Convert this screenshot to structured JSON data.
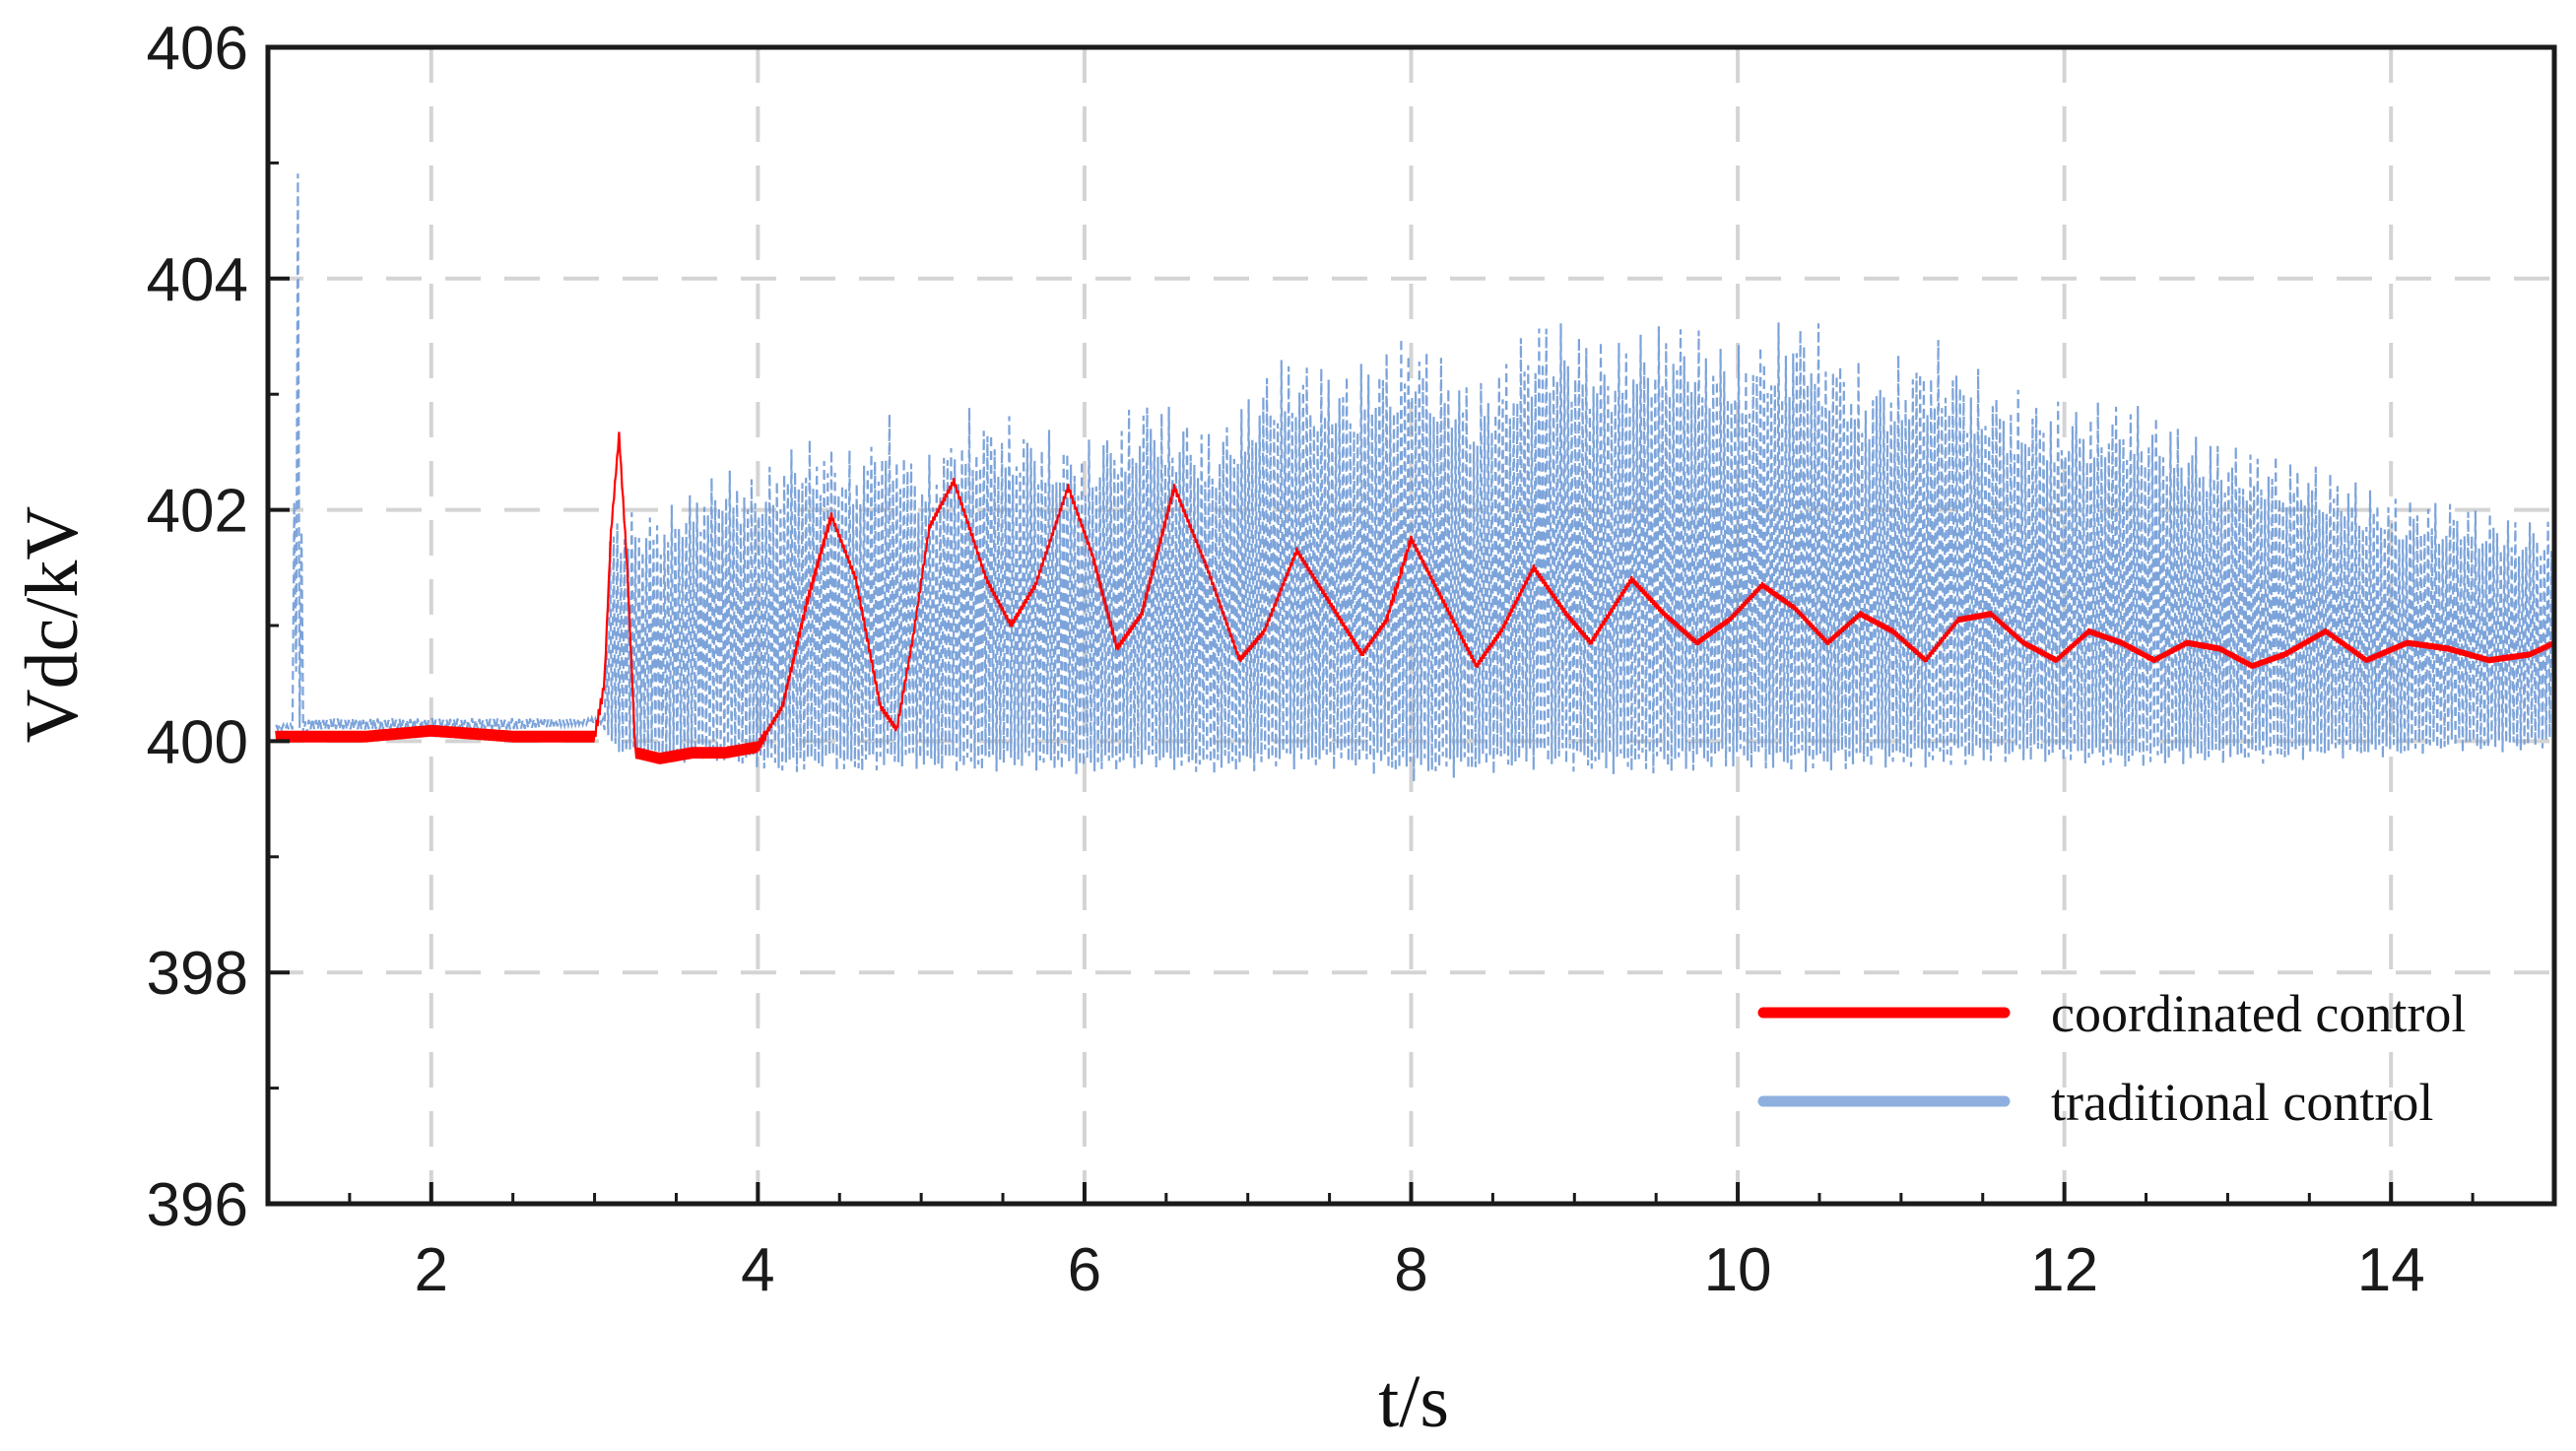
{
  "chart_data": {
    "type": "line",
    "title": "",
    "xlabel": "t/s",
    "ylabel": "Vdc/kV",
    "xlim": [
      1,
      15
    ],
    "ylim": [
      396,
      406
    ],
    "xticks": [
      2,
      4,
      6,
      8,
      10,
      12,
      14
    ],
    "xtick_labels": [
      "2",
      "4",
      "6",
      "8",
      "10",
      "12",
      "14"
    ],
    "yticks": [
      396,
      398,
      400,
      402,
      404,
      406
    ],
    "ytick_labels": [
      "396",
      "398",
      "400",
      "402",
      "404",
      "406"
    ],
    "grid": true,
    "legend_position": "bottom-right",
    "series": [
      {
        "name": "coordinated control",
        "color": "#ff0000",
        "style": "solid",
        "x": [
          1.05,
          1.2,
          1.6,
          2.0,
          2.5,
          3.0,
          3.06,
          3.1,
          3.15,
          3.2,
          3.25,
          3.4,
          3.6,
          3.8,
          4.0,
          4.15,
          4.3,
          4.45,
          4.6,
          4.75,
          4.85,
          4.95,
          5.05,
          5.2,
          5.4,
          5.55,
          5.7,
          5.9,
          6.05,
          6.2,
          6.35,
          6.55,
          6.75,
          6.95,
          7.1,
          7.3,
          7.5,
          7.7,
          7.85,
          8.0,
          8.2,
          8.4,
          8.55,
          8.75,
          8.95,
          9.1,
          9.35,
          9.55,
          9.75,
          9.95,
          10.15,
          10.35,
          10.55,
          10.75,
          10.95,
          11.15,
          11.35,
          11.55,
          11.75,
          11.95,
          12.15,
          12.35,
          12.55,
          12.75,
          12.95,
          13.15,
          13.35,
          13.6,
          13.85,
          14.1,
          14.35,
          14.6,
          14.85,
          15.0
        ],
        "y": [
          400.05,
          400.05,
          400.05,
          400.1,
          400.05,
          400.05,
          400.5,
          401.8,
          402.65,
          401.5,
          399.9,
          399.85,
          399.9,
          399.9,
          399.95,
          400.3,
          401.2,
          401.95,
          401.4,
          400.3,
          400.1,
          400.9,
          401.85,
          402.25,
          401.4,
          401.0,
          401.35,
          402.2,
          401.6,
          400.8,
          401.1,
          402.2,
          401.5,
          400.7,
          400.95,
          401.65,
          401.2,
          400.75,
          401.05,
          401.75,
          401.2,
          400.65,
          400.95,
          401.5,
          401.1,
          400.85,
          401.4,
          401.1,
          400.85,
          401.05,
          401.35,
          401.15,
          400.85,
          401.1,
          400.95,
          400.7,
          401.05,
          401.1,
          400.85,
          400.7,
          400.95,
          400.85,
          400.7,
          400.85,
          400.8,
          400.65,
          400.75,
          400.95,
          400.7,
          400.85,
          400.8,
          400.7,
          400.75,
          400.85
        ]
      },
      {
        "name": "traditional control",
        "color": "#6f9ad6",
        "style": "dashed",
        "x": [
          1.05,
          1.15,
          1.18,
          1.2,
          1.22,
          1.25,
          1.6,
          2.0,
          2.5,
          3.0,
          3.05,
          3.1,
          3.2,
          3.4,
          3.6,
          3.8,
          4.0,
          4.2,
          4.4,
          4.6,
          4.8,
          5.0,
          5.3,
          5.6,
          6.0,
          6.4,
          6.8,
          7.2,
          7.6,
          8.0,
          8.4,
          8.8,
          9.2,
          9.6,
          10.0,
          10.4,
          10.8,
          11.2,
          11.6,
          12.0,
          12.4,
          12.8,
          13.2,
          13.6,
          14.0,
          14.4,
          14.8,
          15.0
        ],
        "y_min": [
          400.1,
          400.1,
          400.5,
          399.85,
          400.0,
          400.1,
          400.1,
          400.1,
          400.1,
          400.15,
          400.15,
          399.9,
          399.85,
          399.8,
          399.8,
          399.8,
          399.75,
          399.7,
          399.75,
          399.7,
          399.75,
          399.75,
          399.7,
          399.75,
          399.7,
          399.75,
          399.7,
          399.75,
          399.75,
          399.65,
          399.7,
          399.75,
          399.7,
          399.7,
          399.75,
          399.7,
          399.75,
          399.75,
          399.8,
          399.8,
          399.75,
          399.8,
          399.8,
          399.85,
          399.85,
          399.9,
          399.9,
          399.95
        ],
        "y_max": [
          400.15,
          400.15,
          405.6,
          402.8,
          400.2,
          400.2,
          400.2,
          400.2,
          400.2,
          400.2,
          400.2,
          402.0,
          402.0,
          402.0,
          402.2,
          402.4,
          402.3,
          402.6,
          402.65,
          402.5,
          402.85,
          402.4,
          402.9,
          402.8,
          402.6,
          403.05,
          402.7,
          403.4,
          403.25,
          403.6,
          403.1,
          403.75,
          403.5,
          403.7,
          403.45,
          403.75,
          403.2,
          403.5,
          403.1,
          402.95,
          403.0,
          402.7,
          402.55,
          402.4,
          402.15,
          402.1,
          401.95,
          401.95
        ]
      }
    ]
  }
}
